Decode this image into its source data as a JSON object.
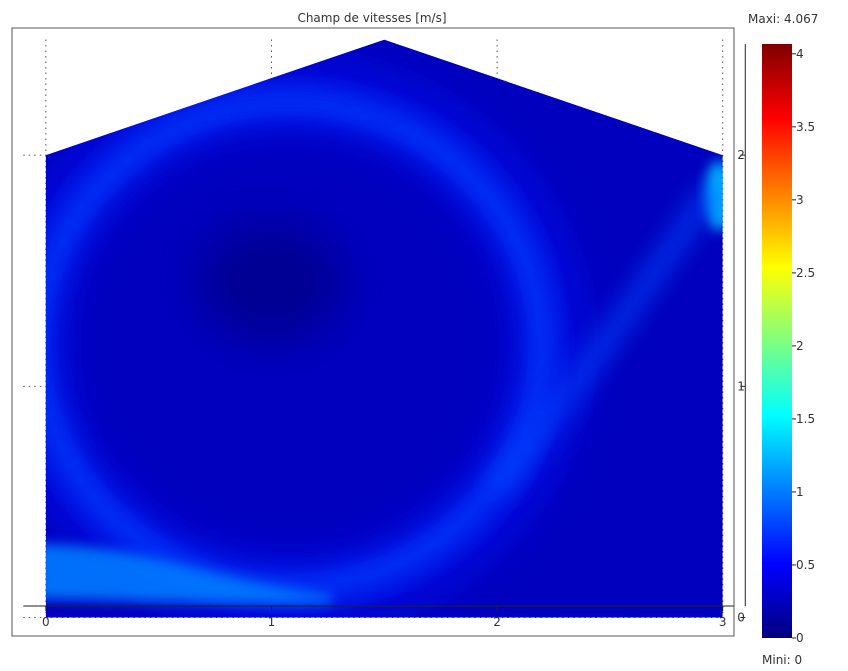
{
  "chart_data": {
    "type": "heatmap",
    "title": "Champ de vitesses [m/s]",
    "xlabel": "",
    "ylabel": "",
    "quantity_unit": "m/s",
    "xlim": [
      -0.15,
      3.05
    ],
    "ylim": [
      -0.08,
      2.55
    ],
    "x_ticks": [
      "0",
      "1",
      "2",
      "3"
    ],
    "y_ticks": [
      "0",
      "1",
      "2"
    ],
    "grid": "dotted",
    "domain_outline": [
      [
        0,
        0
      ],
      [
        3,
        0
      ],
      [
        3,
        2
      ],
      [
        1.5,
        2.5
      ],
      [
        0,
        2
      ]
    ],
    "colorbar": {
      "max_label": "Maxi: 4.067",
      "min_label": "Mini: 0",
      "min": 0,
      "max": 4.067,
      "ticks": [
        "0",
        "0.5",
        "1",
        "1.5",
        "2",
        "2.5",
        "3",
        "3.5",
        "4"
      ],
      "colormap": "jet"
    },
    "background_speed": 0.25,
    "features": [
      {
        "kind": "vortex_ring",
        "center": [
          1.08,
          1.18
        ],
        "rx": 1.15,
        "ry": 1.08,
        "speed": 0.75
      },
      {
        "kind": "vortex_core",
        "center": [
          1.0,
          1.45
        ],
        "speed": 0.05
      },
      {
        "kind": "inlet_jet",
        "x_range": [
          0,
          1.0
        ],
        "y_range": [
          0.08,
          0.32
        ],
        "speed": 1.0
      },
      {
        "kind": "outlet",
        "x": 3.0,
        "y_range": [
          1.7,
          1.95
        ],
        "speed": 1.2
      },
      {
        "kind": "return_flow",
        "path": [
          [
            2.95,
            1.85
          ],
          [
            2.5,
            1.2
          ],
          [
            2.0,
            0.55
          ]
        ],
        "speed": 0.8
      }
    ]
  }
}
